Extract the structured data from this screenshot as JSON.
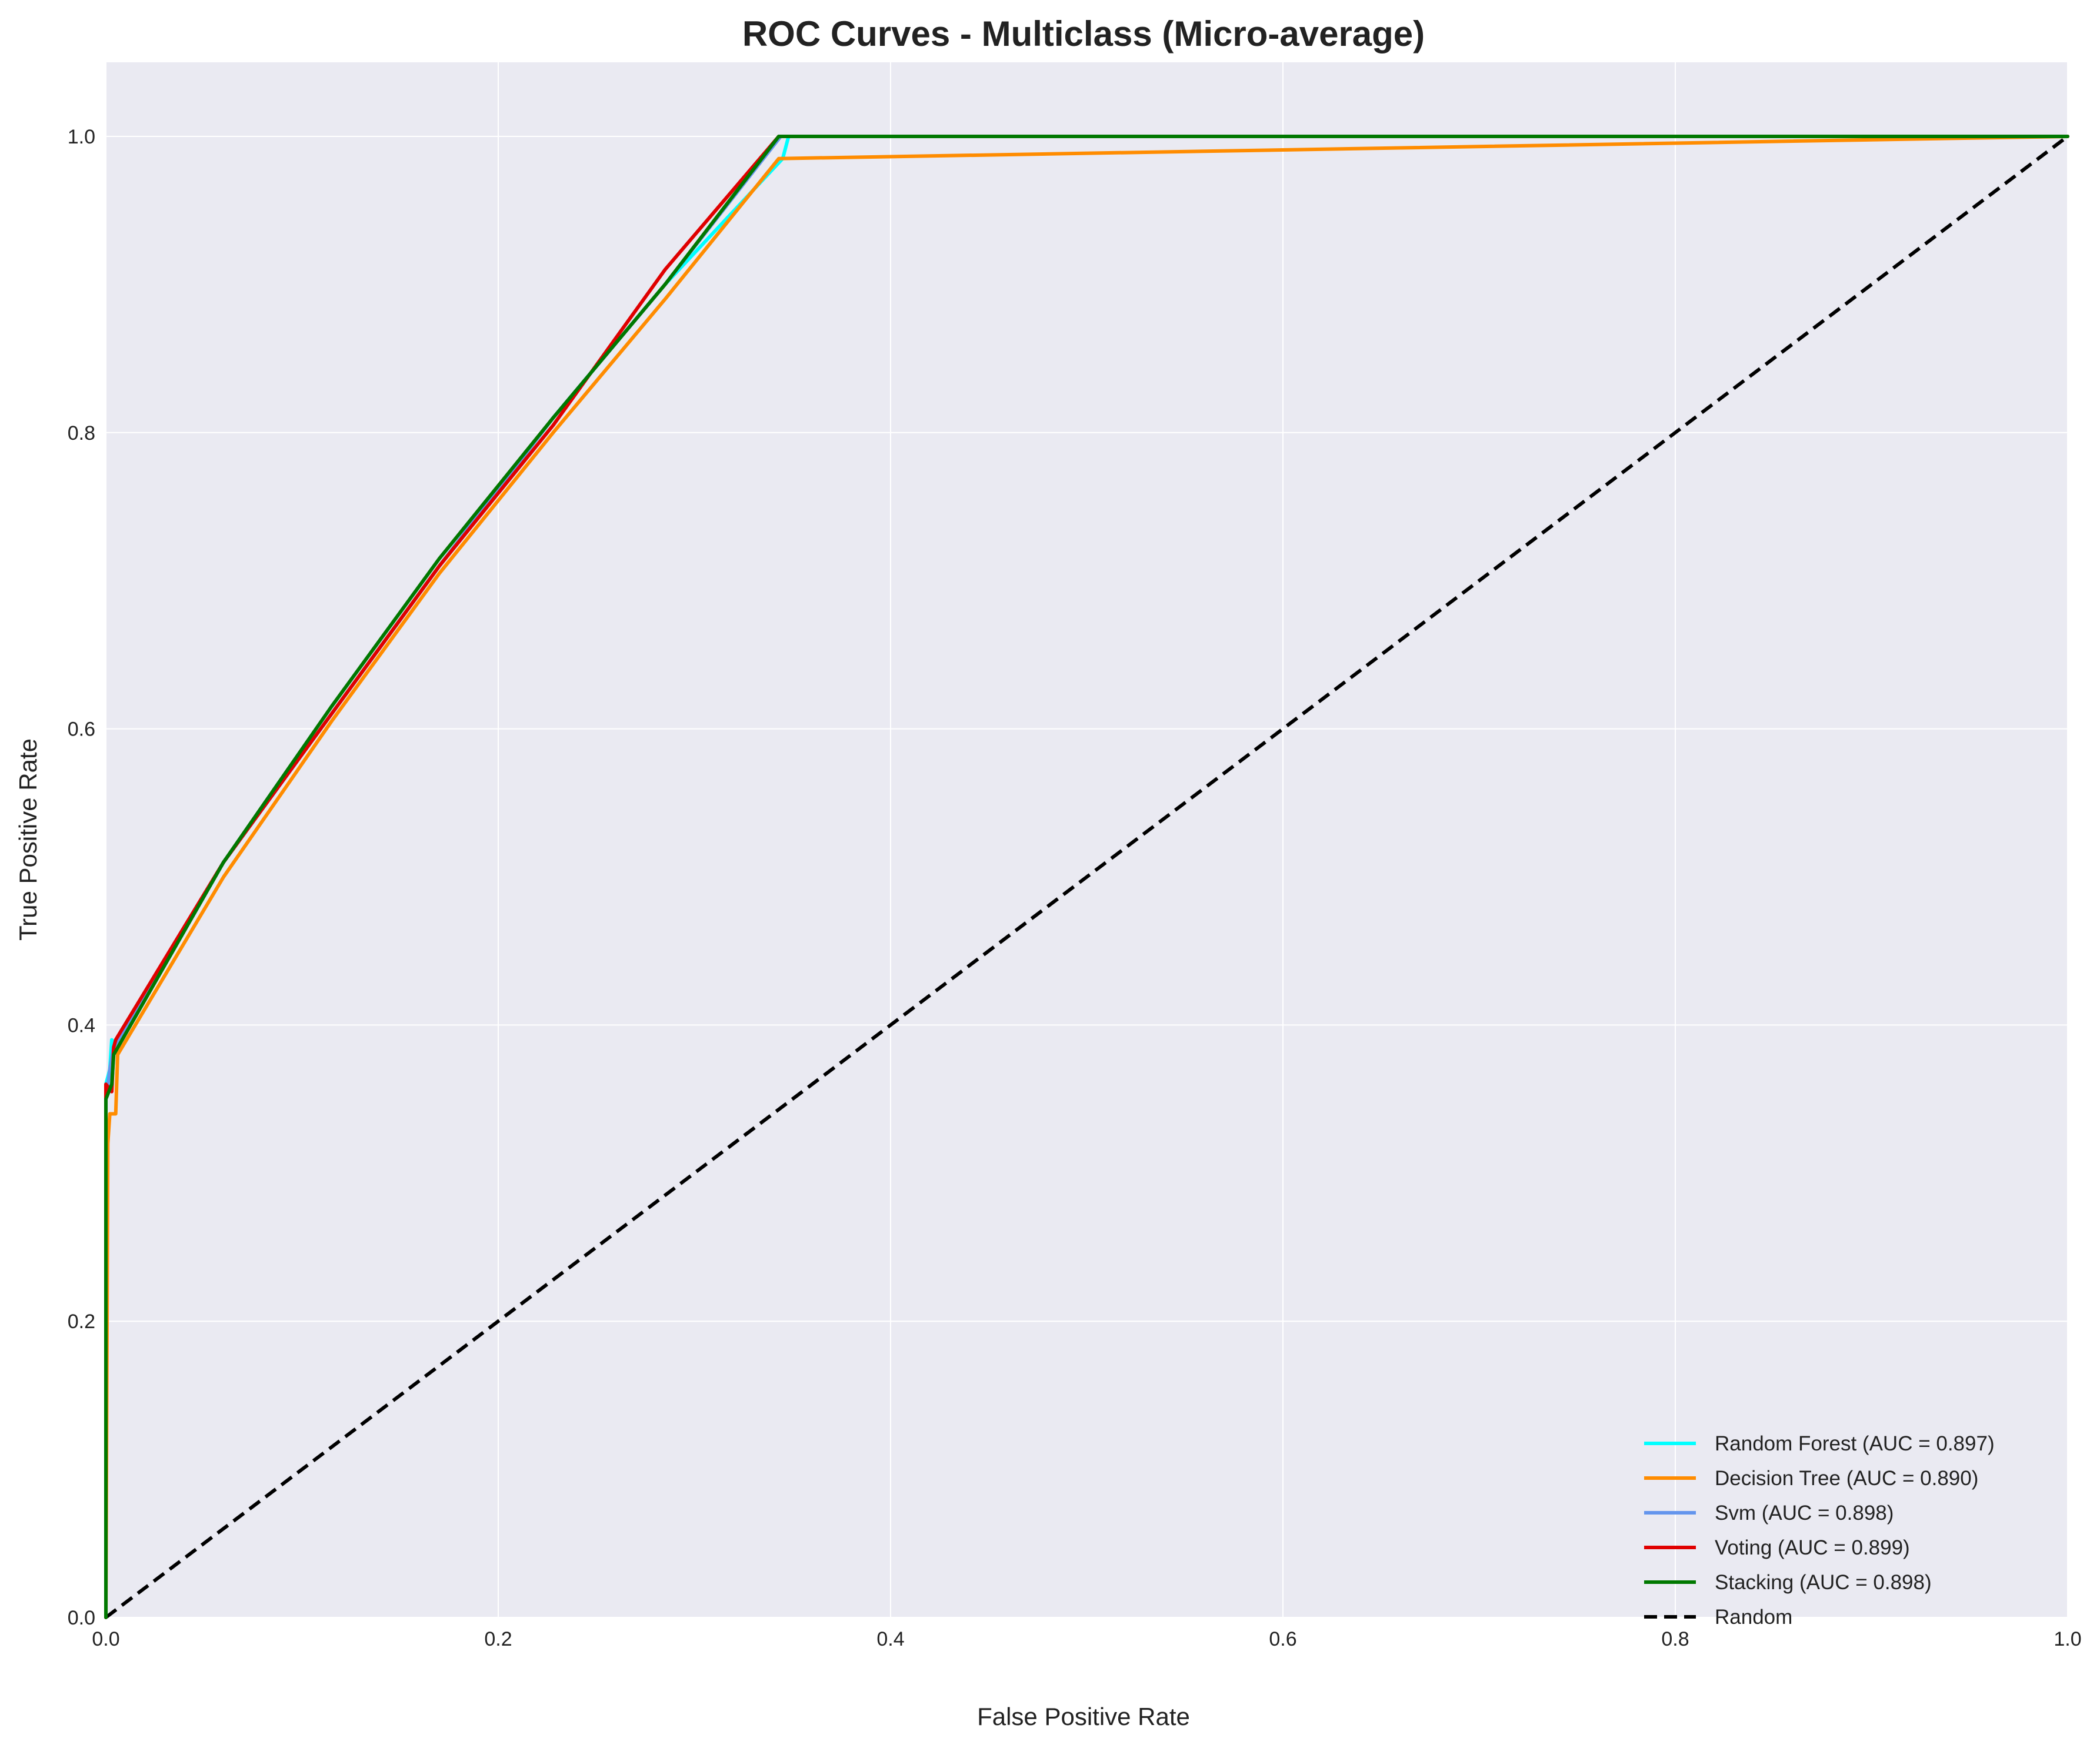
{
  "chart_data": {
    "type": "line",
    "title": "ROC Curves - Multiclass (Micro-average)",
    "xlabel": "False Positive Rate",
    "ylabel": "True Positive Rate",
    "xlim": [
      0,
      1
    ],
    "ylim": [
      0,
      1.05
    ],
    "xticks": [
      "0.0",
      "0.2",
      "0.4",
      "0.6",
      "0.8",
      "1.0"
    ],
    "yticks": [
      "0.0",
      "0.2",
      "0.4",
      "0.6",
      "0.8",
      "1.0"
    ],
    "grid": true,
    "legend_position": "bottom-right",
    "background": "#eaeaf2",
    "series": [
      {
        "name": "Random Forest (AUC = 0.897)",
        "color": "#00ffff",
        "dash": false,
        "x": [
          0,
          0,
          0.002,
          0.003,
          0.006,
          0.06,
          0.115,
          0.17,
          0.228,
          0.285,
          0.345,
          0.348,
          1.0
        ],
        "y": [
          0,
          0.36,
          0.37,
          0.39,
          0.385,
          0.51,
          0.61,
          0.71,
          0.81,
          0.9,
          0.985,
          1.0,
          1.0
        ]
      },
      {
        "name": "Decision Tree (AUC = 0.890)",
        "color": "#ff8c00",
        "dash": false,
        "x": [
          0,
          0.001,
          0.002,
          0.005,
          0.006,
          0.06,
          0.115,
          0.17,
          0.228,
          0.285,
          0.343,
          1.0
        ],
        "y": [
          0,
          0.32,
          0.34,
          0.34,
          0.38,
          0.5,
          0.605,
          0.705,
          0.8,
          0.89,
          0.985,
          1.0
        ]
      },
      {
        "name": "Svm (AUC = 0.898)",
        "color": "#6495ed",
        "dash": false,
        "x": [
          0,
          0,
          0.002,
          0.004,
          0.06,
          0.115,
          0.17,
          0.228,
          0.285,
          0.344,
          1.0
        ],
        "y": [
          0,
          0.35,
          0.37,
          0.385,
          0.51,
          0.61,
          0.71,
          0.81,
          0.9,
          1.0,
          1.0
        ]
      },
      {
        "name": "Voting (AUC = 0.899)",
        "color": "#e00000",
        "dash": false,
        "x": [
          0,
          0,
          0.003,
          0.004,
          0.005,
          0.06,
          0.115,
          0.17,
          0.228,
          0.285,
          0.343,
          1.0
        ],
        "y": [
          0,
          0.36,
          0.355,
          0.385,
          0.39,
          0.51,
          0.61,
          0.71,
          0.805,
          0.91,
          1.0,
          1.0
        ]
      },
      {
        "name": "Stacking (AUC = 0.898)",
        "color": "#007800",
        "dash": false,
        "x": [
          0,
          0,
          0.003,
          0.004,
          0.06,
          0.115,
          0.17,
          0.228,
          0.285,
          0.343,
          1.0
        ],
        "y": [
          0,
          0.35,
          0.36,
          0.38,
          0.51,
          0.615,
          0.715,
          0.81,
          0.9,
          1.0,
          1.0
        ]
      },
      {
        "name": "Random",
        "color": "#000000",
        "dash": true,
        "x": [
          0,
          1
        ],
        "y": [
          0,
          1
        ]
      }
    ]
  }
}
